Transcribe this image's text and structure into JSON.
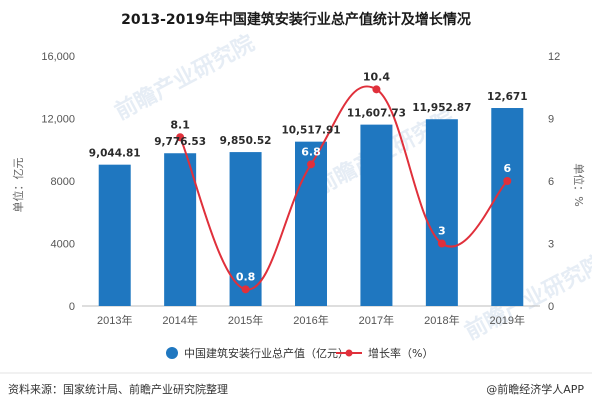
{
  "chart_data": {
    "type": "bar",
    "title": "2013-2019年中国建筑安装行业总产值统计及增长情况",
    "categories": [
      "2013年",
      "2014年",
      "2015年",
      "2016年",
      "2017年",
      "2018年",
      "2019年"
    ],
    "series": [
      {
        "name": "中国建筑安装行业总产值（亿元）",
        "type": "bar",
        "axis": "left",
        "color": "#1f77c0",
        "values": [
          9044.81,
          9776.53,
          9850.52,
          10517.91,
          11607.73,
          11952.87,
          12671
        ],
        "labels": [
          "9,044.81",
          "9,776.53",
          "9,850.52",
          "10,517.91",
          "11,607.73",
          "11,952.87",
          "12,671"
        ]
      },
      {
        "name": "增长率（%）",
        "type": "line",
        "axis": "right",
        "color": "#e0303b",
        "values": [
          null,
          8.1,
          0.8,
          6.8,
          10.4,
          3,
          6
        ],
        "labels": [
          "",
          "8.1",
          "0.8",
          "6.8",
          "10.4",
          "3",
          "6"
        ]
      }
    ],
    "ylabel": "单位：亿元",
    "ylim": [
      0,
      16000
    ],
    "yticks": [
      "0",
      "4000",
      "8000",
      "12,000",
      "16,000"
    ],
    "y2label": "单位：%",
    "y2lim": [
      0,
      12
    ],
    "y2ticks": [
      "0",
      "3",
      "6",
      "9",
      "12"
    ],
    "grid": false,
    "legend_position": "bottom"
  },
  "watermark": "前瞻产业研究院",
  "footer": {
    "source": "资料来源：国家统计局、前瞻产业研究院整理",
    "brand": "@前瞻经济学人APP"
  }
}
